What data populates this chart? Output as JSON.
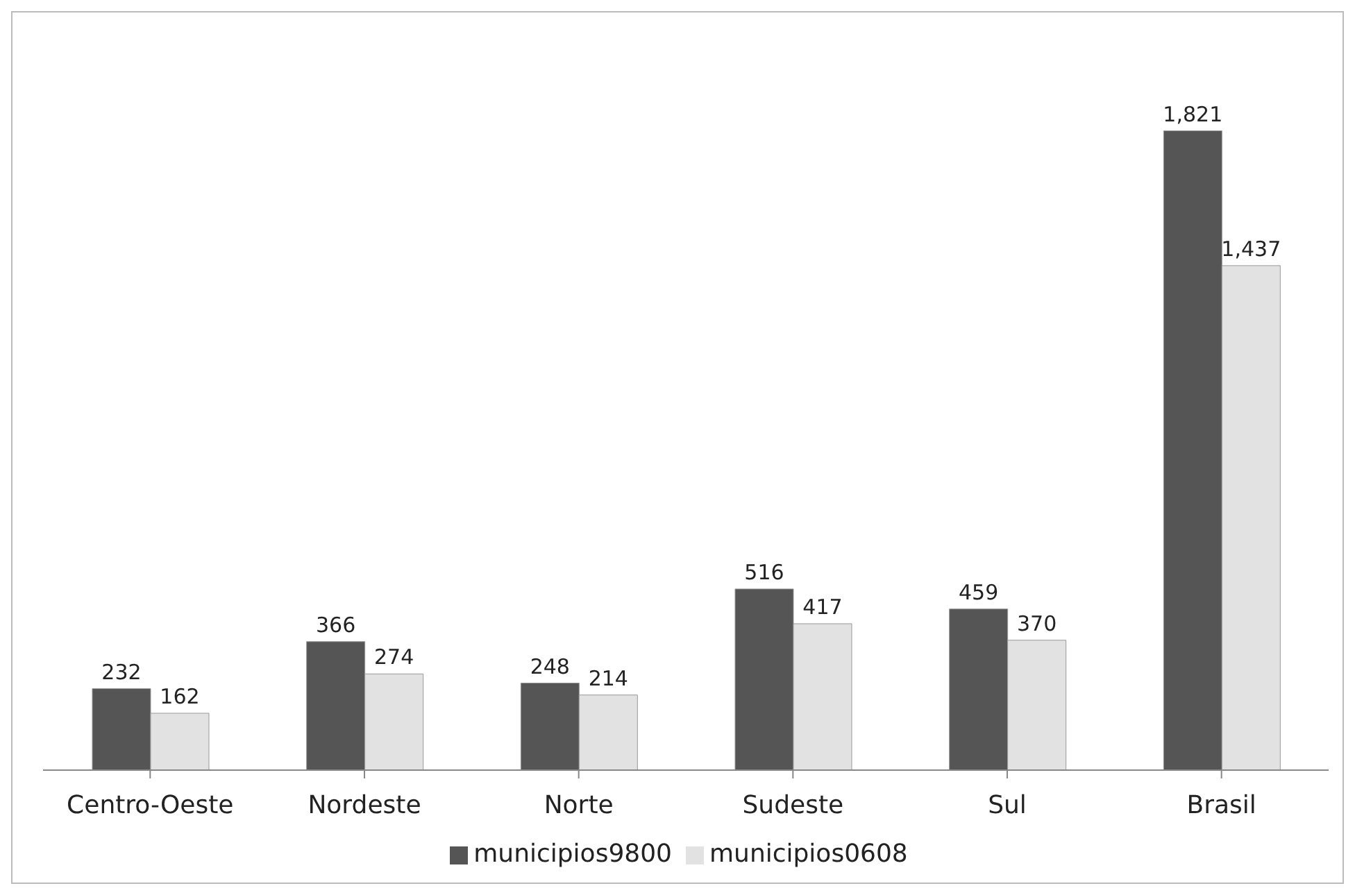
{
  "chart_data": {
    "type": "bar",
    "categories": [
      "Centro-Oeste",
      "Nordeste",
      "Norte",
      "Sudeste",
      "Sul",
      "Brasil"
    ],
    "series": [
      {
        "name": "municipios9800",
        "color": "#555555",
        "values": [
          232,
          366,
          248,
          516,
          459,
          1821
        ],
        "value_labels": [
          "232",
          "366",
          "248",
          "516",
          "459",
          "1,821"
        ]
      },
      {
        "name": "municipios0608",
        "color": "#e2e2e2",
        "values": [
          162,
          274,
          214,
          417,
          370,
          1437
        ],
        "value_labels": [
          "162",
          "274",
          "214",
          "417",
          "370",
          "1,437"
        ]
      }
    ],
    "legend": "bottom"
  }
}
